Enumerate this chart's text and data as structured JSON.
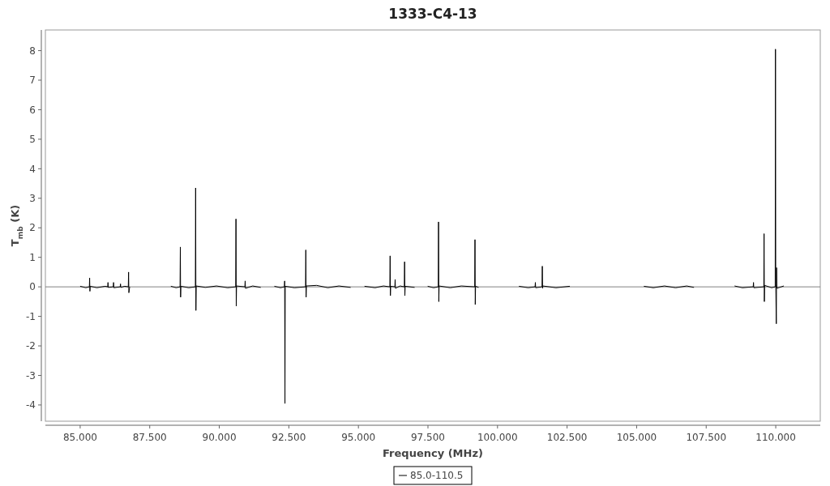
{
  "chart_data": {
    "type": "line",
    "title": "1333-C4-13",
    "xlabel": "Frequency (MHz)",
    "ylabel": "T$_{mb}$ (K)",
    "xlim": [
      83.75,
      111.6
    ],
    "ylim": [
      -4.55,
      8.7
    ],
    "xticks": [
      {
        "value": 85,
        "label": "85.000"
      },
      {
        "value": 87.5,
        "label": "87.500"
      },
      {
        "value": 90,
        "label": "90.000"
      },
      {
        "value": 92.5,
        "label": "92.500"
      },
      {
        "value": 95,
        "label": "95.000"
      },
      {
        "value": 97.5,
        "label": "97.500"
      },
      {
        "value": 100,
        "label": "100.000"
      },
      {
        "value": 102.5,
        "label": "102.500"
      },
      {
        "value": 105,
        "label": "105.000"
      },
      {
        "value": 107.5,
        "label": "107.500"
      },
      {
        "value": 110,
        "label": "110.000"
      }
    ],
    "yticks": [
      -4,
      -3,
      -2,
      -1,
      0,
      1,
      2,
      3,
      4,
      5,
      6,
      7,
      8
    ],
    "grid": false,
    "legend": "bottom",
    "line_style": "solid",
    "ref_lines": [
      {
        "axis": "y",
        "value": 0,
        "color": "#808080"
      }
    ],
    "x": [
      85.0,
      85.2,
      85.33,
      85.34,
      85.35,
      85.36,
      85.6,
      85.9,
      85.99,
      86.0,
      86.01,
      86.19,
      86.2,
      86.21,
      86.44,
      86.45,
      86.46,
      86.6,
      86.73,
      86.74,
      86.75,
      86.78,
      87.5,
      88.26,
      88.45,
      88.59,
      88.6,
      88.61,
      88.62,
      88.9,
      89.14,
      89.15,
      89.16,
      89.17,
      89.5,
      89.9,
      90.3,
      90.59,
      90.6,
      90.61,
      90.62,
      90.92,
      90.93,
      90.94,
      91.2,
      91.49,
      91.7,
      91.98,
      92.2,
      92.34,
      92.35,
      92.36,
      92.37,
      92.7,
      93.1,
      93.11,
      93.12,
      93.13,
      93.5,
      93.9,
      94.3,
      94.72,
      95.0,
      95.22,
      95.6,
      95.9,
      96.13,
      96.14,
      96.15,
      96.16,
      96.31,
      96.32,
      96.33,
      96.5,
      96.65,
      96.66,
      96.67,
      96.68,
      97.02,
      97.3,
      97.49,
      97.7,
      97.87,
      97.88,
      97.89,
      97.9,
      98.3,
      98.7,
      99.18,
      99.19,
      99.2,
      99.21,
      99.32,
      100.0,
      100.77,
      101.1,
      101.35,
      101.36,
      101.37,
      101.6,
      101.61,
      101.62,
      101.63,
      102.1,
      102.6,
      104.0,
      105.26,
      105.6,
      106.0,
      106.4,
      106.8,
      107.06,
      108.0,
      108.52,
      108.8,
      109.19,
      109.2,
      109.21,
      109.57,
      109.58,
      109.59,
      109.6,
      109.85,
      109.98,
      109.99,
      110.0,
      110.02,
      110.03,
      110.04,
      110.29
    ],
    "series": [
      {
        "name": "85.0-110.5",
        "color": "#000000",
        "values": [
          0.02,
          -0.03,
          0.0,
          0.3,
          -0.15,
          0.02,
          -0.03,
          0.02,
          0.0,
          0.15,
          -0.02,
          0.0,
          0.15,
          -0.03,
          0.0,
          0.1,
          -0.02,
          0.02,
          0.0,
          0.5,
          -0.2,
          0.0,
          null,
          0.02,
          -0.03,
          0.0,
          1.35,
          -0.35,
          0.02,
          -0.03,
          0.0,
          3.35,
          -0.8,
          0.03,
          -0.02,
          0.03,
          -0.03,
          0.0,
          2.3,
          -0.65,
          0.03,
          0.0,
          0.2,
          -0.05,
          0.03,
          -0.02,
          null,
          0.02,
          -0.03,
          0.0,
          0.2,
          -3.95,
          0.02,
          -0.03,
          0.0,
          1.25,
          -0.35,
          0.03,
          0.05,
          -0.03,
          0.03,
          -0.02,
          null,
          0.02,
          -0.03,
          0.03,
          0.0,
          1.05,
          -0.3,
          0.02,
          0.0,
          0.25,
          -0.05,
          0.03,
          0.0,
          0.85,
          -0.3,
          0.02,
          -0.02,
          null,
          0.02,
          -0.03,
          0.0,
          2.2,
          -0.5,
          0.03,
          -0.03,
          0.03,
          0.0,
          1.6,
          -0.6,
          0.02,
          -0.02,
          null,
          0.02,
          -0.03,
          0.0,
          0.15,
          -0.03,
          0.0,
          0.7,
          -0.05,
          0.03,
          -0.03,
          0.02,
          null,
          0.02,
          -0.03,
          0.03,
          -0.03,
          0.03,
          -0.02,
          null,
          0.03,
          -0.03,
          0.0,
          0.15,
          -0.03,
          0.0,
          1.8,
          -0.5,
          0.05,
          -0.03,
          0.0,
          8.05,
          0.1,
          -1.25,
          0.65,
          -0.05,
          0.03
        ]
      }
    ]
  }
}
